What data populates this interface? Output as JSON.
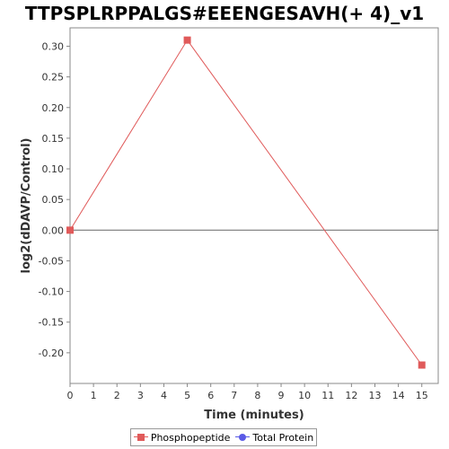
{
  "chart_data": {
    "type": "line",
    "title": "TTPSPLRPPALGS#EEENGESAVH(+ 4)_v1",
    "xlabel": "Time (minutes)",
    "ylabel": "log2(dDAVP/Control)",
    "xlim": [
      0,
      15.7
    ],
    "ylim": [
      -0.25,
      0.33
    ],
    "xticks": [
      0,
      1,
      2,
      3,
      4,
      5,
      6,
      7,
      8,
      9,
      10,
      11,
      12,
      13,
      14,
      15
    ],
    "yticks": [
      -0.2,
      -0.15,
      -0.1,
      -0.05,
      0.0,
      0.05,
      0.1,
      0.15,
      0.2,
      0.25,
      0.3
    ],
    "ytick_labels": [
      "-0.20",
      "-0.15",
      "-0.10",
      "-0.05",
      "0.00",
      "0.05",
      "0.10",
      "0.15",
      "0.20",
      "0.25",
      "0.30"
    ],
    "zero_line": true,
    "grid": false,
    "legend_position": "bottom",
    "series": [
      {
        "name": "Phosphopeptide",
        "color": "#e05a5a",
        "marker": "square",
        "x": [
          0,
          5,
          15
        ],
        "y": [
          0.0,
          0.31,
          -0.22
        ]
      },
      {
        "name": "Total Protein",
        "color": "#5a5ae6",
        "marker": "circle",
        "x": [],
        "y": []
      }
    ]
  }
}
